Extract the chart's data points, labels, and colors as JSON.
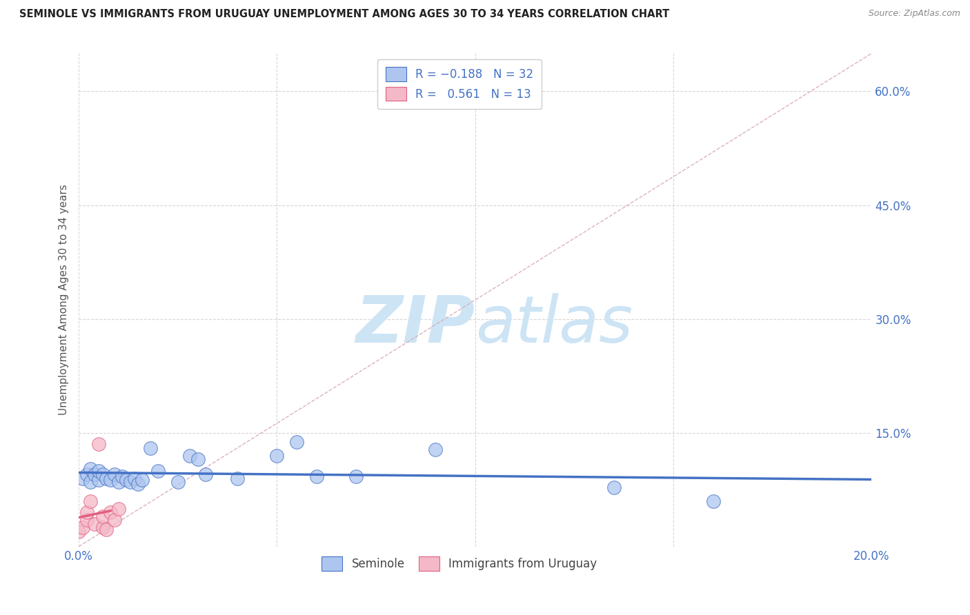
{
  "title": "SEMINOLE VS IMMIGRANTS FROM URUGUAY UNEMPLOYMENT AMONG AGES 30 TO 34 YEARS CORRELATION CHART",
  "source": "Source: ZipAtlas.com",
  "ylabel": "Unemployment Among Ages 30 to 34 years",
  "xlim": [
    0.0,
    0.2
  ],
  "ylim": [
    0.0,
    0.65
  ],
  "xticks": [
    0.0,
    0.05,
    0.1,
    0.15,
    0.2
  ],
  "xticklabels": [
    "0.0%",
    "",
    "",
    "",
    "20.0%"
  ],
  "yticks": [
    0.0,
    0.15,
    0.3,
    0.45,
    0.6
  ],
  "yticklabels": [
    "",
    "15.0%",
    "30.0%",
    "45.0%",
    "60.0%"
  ],
  "seminole_x": [
    0.001,
    0.002,
    0.003,
    0.003,
    0.004,
    0.005,
    0.005,
    0.006,
    0.007,
    0.008,
    0.009,
    0.01,
    0.011,
    0.012,
    0.013,
    0.014,
    0.015,
    0.016,
    0.018,
    0.02,
    0.025,
    0.028,
    0.03,
    0.032,
    0.04,
    0.05,
    0.055,
    0.06,
    0.07,
    0.09,
    0.135,
    0.16
  ],
  "seminole_y": [
    0.09,
    0.095,
    0.085,
    0.102,
    0.095,
    0.088,
    0.1,
    0.095,
    0.09,
    0.088,
    0.095,
    0.085,
    0.092,
    0.088,
    0.085,
    0.09,
    0.082,
    0.088,
    0.13,
    0.1,
    0.085,
    0.12,
    0.115,
    0.095,
    0.09,
    0.12,
    0.138,
    0.092,
    0.092,
    0.128,
    0.078,
    0.06
  ],
  "uruguay_x": [
    0.0,
    0.001,
    0.002,
    0.002,
    0.003,
    0.004,
    0.005,
    0.006,
    0.006,
    0.007,
    0.008,
    0.009,
    0.01
  ],
  "uruguay_y": [
    0.02,
    0.025,
    0.035,
    0.045,
    0.06,
    0.03,
    0.135,
    0.025,
    0.04,
    0.022,
    0.045,
    0.035,
    0.05
  ],
  "seminole_color": "#aec6ef",
  "uruguay_color": "#f4b8c8",
  "seminole_line_color": "#4472c4",
  "uruguay_line_color": "#e06080",
  "trend_line_color": "#d8a8b8",
  "watermark_zip": "ZIP",
  "watermark_atlas": "atlas",
  "watermark_color": "#cde4f5",
  "legend_label_seminole": "Seminole",
  "legend_label_uruguay": "Immigrants from Uruguay",
  "background_color": "#ffffff",
  "title_fontsize": 10.5,
  "axis_tick_color": "#4472c4",
  "grid_color": "#cccccc"
}
